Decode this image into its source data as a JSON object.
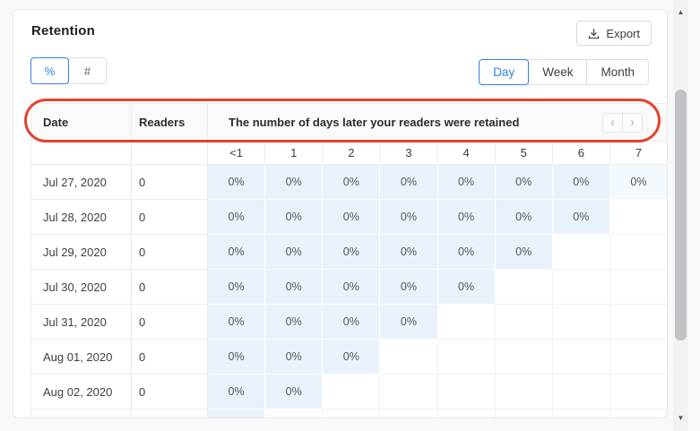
{
  "page_title": "Retention",
  "export": {
    "label": "Export"
  },
  "unit_toggle": [
    {
      "label": "%",
      "active": true
    },
    {
      "label": "#",
      "active": false
    }
  ],
  "period_tabs": [
    {
      "label": "Day",
      "active": true
    },
    {
      "label": "Week",
      "active": false
    },
    {
      "label": "Month",
      "active": false
    }
  ],
  "table": {
    "col_date": "Date",
    "col_readers": "Readers",
    "col_days": "The number of days later your readers were retained",
    "pager": {
      "prev": "‹",
      "next": "›"
    },
    "day_columns": [
      "<1",
      "1",
      "2",
      "3",
      "4",
      "5",
      "6",
      "7"
    ],
    "rows": [
      {
        "date": "Jul 27, 2020",
        "readers": "0",
        "retained": [
          "0%",
          "0%",
          "0%",
          "0%",
          "0%",
          "0%",
          "0%",
          "0%"
        ],
        "last_cell_light": true
      },
      {
        "date": "Jul 28, 2020",
        "readers": "0",
        "retained": [
          "0%",
          "0%",
          "0%",
          "0%",
          "0%",
          "0%",
          "0%"
        ]
      },
      {
        "date": "Jul 29, 2020",
        "readers": "0",
        "retained": [
          "0%",
          "0%",
          "0%",
          "0%",
          "0%",
          "0%"
        ]
      },
      {
        "date": "Jul 30, 2020",
        "readers": "0",
        "retained": [
          "0%",
          "0%",
          "0%",
          "0%",
          "0%"
        ]
      },
      {
        "date": "Jul 31, 2020",
        "readers": "0",
        "retained": [
          "0%",
          "0%",
          "0%",
          "0%"
        ]
      },
      {
        "date": "Aug 01, 2020",
        "readers": "0",
        "retained": [
          "0%",
          "0%",
          "0%"
        ]
      },
      {
        "date": "Aug 02, 2020",
        "readers": "0",
        "retained": [
          "0%",
          "0%"
        ]
      },
      {
        "date": "",
        "readers": "",
        "retained": [
          ""
        ],
        "partial": true
      }
    ]
  },
  "scrollbar": {
    "up": "▲",
    "down": "▼"
  },
  "colors": {
    "accent_blue": "#2f80ed",
    "annotation_red": "#e2432c",
    "cell_blue": "#e9f2fb",
    "cell_blue_light": "#f3f9fd"
  }
}
